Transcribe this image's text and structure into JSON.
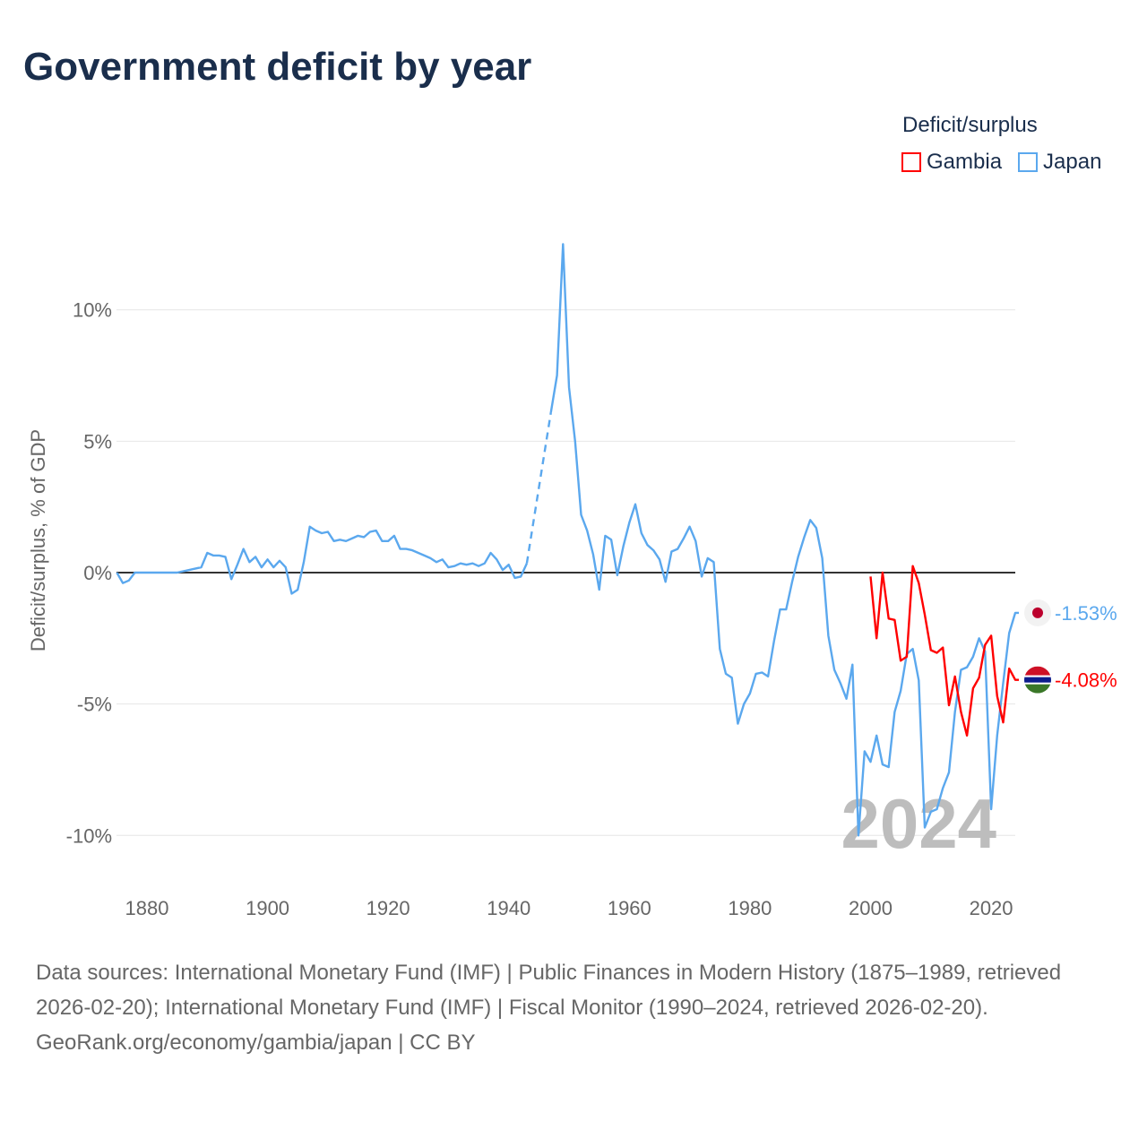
{
  "title": "Government deficit by year",
  "legend": {
    "title": "Deficit/surplus",
    "items": [
      {
        "label": "Gambia",
        "color": "#ff0000"
      },
      {
        "label": "Japan",
        "color": "#5ba8ee"
      }
    ]
  },
  "footer": {
    "sources": "Data sources: International Monetary Fund (IMF) | Public Finances in Modern History (1875–1989, retrieved 2026-02-20); International Monetary Fund (IMF) | Fiscal Monitor (1990–2024, retrieved 2026-02-20).",
    "credit": "GeoRank.org/economy/gambia/japan | CC BY"
  },
  "chart_data": {
    "type": "line",
    "title": "Government deficit by year",
    "ylabel": "Deficit/surplus, % of GDP",
    "xlabel": "",
    "xlim": [
      1875,
      2024
    ],
    "ylim": [
      -11.5,
      14
    ],
    "x_ticks": [
      1880,
      1900,
      1920,
      1940,
      1960,
      1980,
      2000,
      2020
    ],
    "y_ticks": [
      {
        "v": 10,
        "label": "10%"
      },
      {
        "v": 5,
        "label": "5%"
      },
      {
        "v": 0,
        "label": "0%"
      },
      {
        "v": -5,
        "label": "-5%"
      },
      {
        "v": -10,
        "label": "-10%"
      }
    ],
    "grid": true,
    "year_watermark": "2024",
    "series": [
      {
        "name": "Japan",
        "color": "#5ba8ee",
        "end_label": "-1.53%",
        "start_year": 1875,
        "values": [
          0,
          -0.4,
          -0.3,
          0,
          0,
          0,
          0,
          0,
          0,
          0,
          0,
          0.05,
          0.1,
          0.15,
          0.2,
          0.75,
          0.65,
          0.65,
          0.6,
          -0.25,
          0.3,
          0.9,
          0.4,
          0.6,
          0.2,
          0.5,
          0.2,
          0.45,
          0.2,
          -0.8,
          -0.65,
          0.4,
          1.75,
          1.6,
          1.5,
          1.55,
          1.2,
          1.25,
          1.2,
          1.3,
          1.4,
          1.35,
          1.55,
          1.6,
          1.2,
          1.2,
          1.4,
          0.9,
          0.9,
          0.85,
          0.75,
          0.65,
          0.55,
          0.4,
          0.5,
          0.2,
          0.25,
          0.35,
          0.3,
          0.35,
          0.25,
          0.35,
          0.75,
          0.5,
          0.1,
          0.3,
          -0.2,
          -0.15,
          0.35,
          null,
          null,
          null,
          6.1,
          7.5,
          12.5,
          7.05,
          5.0,
          2.2,
          1.6,
          0.7,
          -0.65,
          1.4,
          1.25,
          -0.1,
          1.0,
          1.9,
          2.6,
          1.5,
          1.05,
          0.85,
          0.5,
          -0.35,
          0.8,
          0.9,
          1.3,
          1.75,
          1.2,
          -0.15,
          0.55,
          0.4,
          -2.9,
          -3.85,
          -4.0,
          -5.75,
          -5.0,
          -4.6,
          -3.85,
          -3.8,
          -3.95,
          -2.6,
          -1.4,
          -1.4,
          -0.35,
          0.6,
          1.35,
          2.0,
          1.7,
          0.55,
          -2.4,
          -3.7,
          -4.2,
          -4.8,
          -3.5,
          -10.0,
          -6.8,
          -7.2,
          -6.2,
          -7.3,
          -7.4,
          -5.3,
          -4.5,
          -3.1,
          -2.9,
          -4.1,
          -9.7,
          -9.1,
          -9.0,
          -8.2,
          -7.6,
          -5.3,
          -3.7,
          -3.6,
          -3.2,
          -2.5,
          -3.0,
          -9.0,
          -6.2,
          -4.2,
          -2.3,
          -1.53,
          -1.53
        ]
      },
      {
        "name": "Gambia",
        "color": "#ff0000",
        "end_label": "-4.08%",
        "start_year": 2000,
        "values": [
          -0.15,
          -2.5,
          0.0,
          -1.75,
          -1.8,
          -3.35,
          -3.2,
          0.25,
          -0.4,
          -1.6,
          -2.95,
          -3.05,
          -2.85,
          -5.05,
          -3.95,
          -5.3,
          -6.2,
          -4.4,
          -4.0,
          -2.75,
          -2.4,
          -4.7,
          -5.7,
          -3.65,
          -4.08,
          -4.08
        ]
      }
    ]
  }
}
